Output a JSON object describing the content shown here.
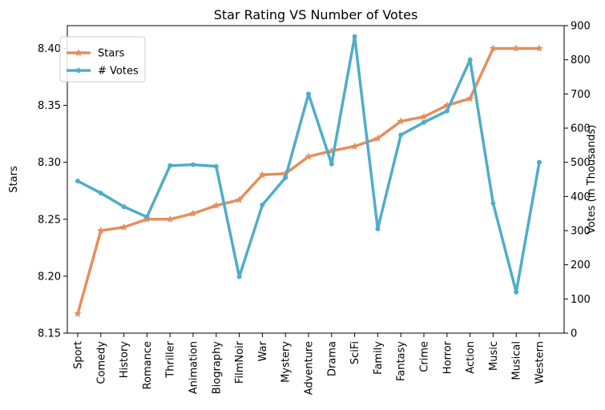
{
  "chart_data": {
    "type": "line",
    "title": "Star Rating VS Number of Votes",
    "categories": [
      "Sport",
      "Comedy",
      "History",
      "Romance",
      "Thriller",
      "Animation",
      "Biography",
      "FilmNoir",
      "War",
      "Mystery",
      "Adventure",
      "Drama",
      "SciFi",
      "Family",
      "Fantasy",
      "Crime",
      "Horror",
      "Action",
      "Music",
      "Musical",
      "Western"
    ],
    "ylabel": "Stars",
    "y2label": "Votes (in Thousands)",
    "ylim": [
      8.15,
      8.42
    ],
    "y2lim": [
      0,
      900
    ],
    "yticks": [
      "8.15",
      "8.20",
      "8.25",
      "8.30",
      "8.35",
      "8.40"
    ],
    "y2ticks": [
      "0",
      "100",
      "200",
      "300",
      "400",
      "500",
      "600",
      "700",
      "800",
      "900"
    ],
    "legend_position": "upper-left",
    "grid": false,
    "series": [
      {
        "name": "Stars",
        "axis": "left",
        "color": "#e48f5e",
        "marker": "star",
        "values": [
          8.167,
          8.24,
          8.243,
          8.25,
          8.25,
          8.255,
          8.262,
          8.267,
          8.289,
          8.29,
          8.305,
          8.31,
          8.314,
          8.321,
          8.336,
          8.34,
          8.35,
          8.356,
          8.4,
          8.4,
          8.4
        ]
      },
      {
        "name": "# Votes",
        "axis": "right",
        "color": "#4fadc9",
        "marker": "dot",
        "values": [
          445,
          410,
          370,
          340,
          490,
          493,
          488,
          165,
          375,
          455,
          700,
          495,
          868,
          305,
          580,
          617,
          650,
          800,
          380,
          120,
          500
        ]
      }
    ]
  }
}
